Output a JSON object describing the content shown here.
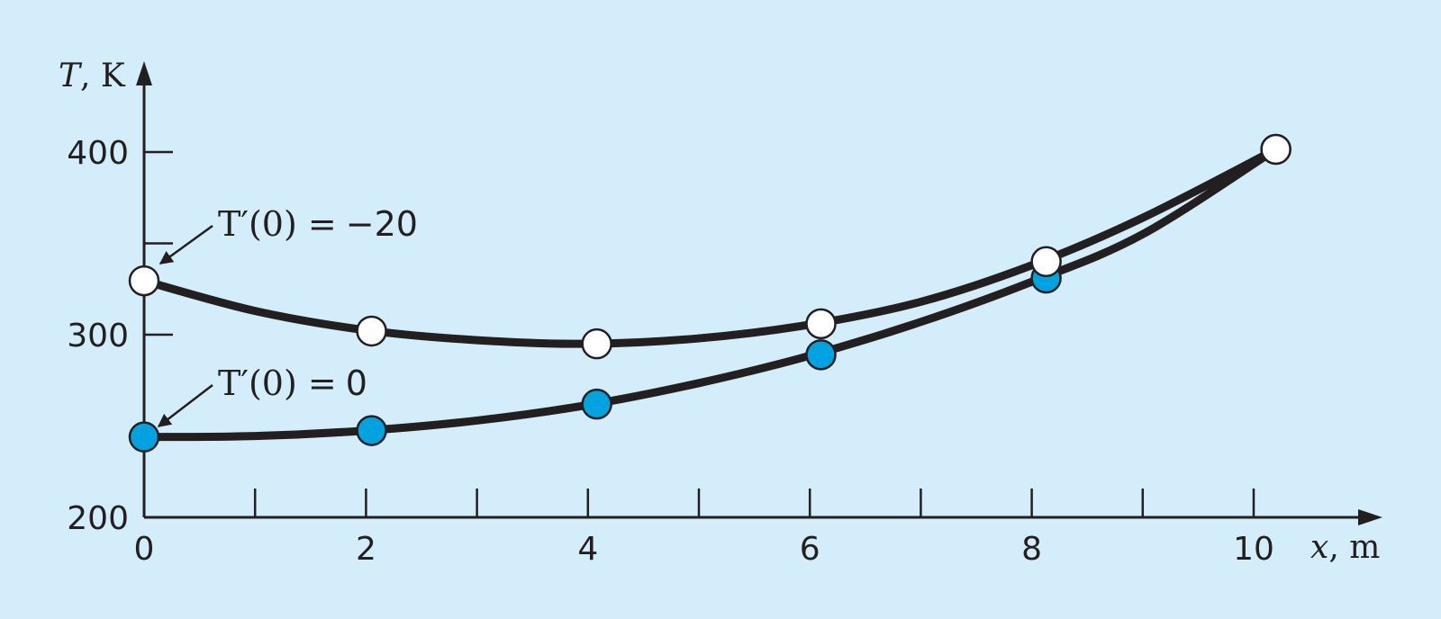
{
  "chart_data": {
    "type": "line",
    "xlim": [
      0,
      10.2
    ],
    "ylim": [
      200,
      400
    ],
    "x_ticks": [
      0,
      2,
      4,
      6,
      8,
      10
    ],
    "x_minor_ticks": [
      1,
      3,
      5,
      7,
      9
    ],
    "y_ticks": [
      200,
      300,
      400
    ],
    "y_minor_ticks": [
      350
    ],
    "xlabel": {
      "var": "x",
      "unit": ", m"
    },
    "ylabel": {
      "var": "T",
      "unit": ", K"
    },
    "grid": false,
    "legend": "none",
    "colors": {
      "background": "#d4edfa",
      "curve": "#231f20",
      "open_marker": "#ffffff",
      "filled_marker": "#00a3e0"
    },
    "series": [
      {
        "marker": "open",
        "x": [
          0,
          2.05,
          4.08,
          6.1,
          8.13,
          10.2
        ],
        "y": [
          329.5,
          302,
          295,
          306,
          340,
          401.5
        ],
        "curve": [
          [
            0,
            329.5
          ],
          [
            1,
            313
          ],
          [
            2,
            302.5
          ],
          [
            3,
            297
          ],
          [
            4,
            295
          ],
          [
            5,
            298
          ],
          [
            6,
            305.5
          ],
          [
            7,
            318
          ],
          [
            8,
            338
          ],
          [
            9,
            364
          ],
          [
            10.2,
            401.5
          ]
        ]
      },
      {
        "marker": "filled",
        "x": [
          0,
          2.05,
          4.08,
          6.1,
          8.13,
          10.2
        ],
        "y": [
          244,
          247.5,
          262,
          289,
          331,
          401.5
        ],
        "curve": [
          [
            0,
            244
          ],
          [
            1,
            244.5
          ],
          [
            2,
            247.5
          ],
          [
            3,
            253
          ],
          [
            4,
            261.5
          ],
          [
            5,
            273.5
          ],
          [
            6,
            288.5
          ],
          [
            7,
            307
          ],
          [
            8,
            329
          ],
          [
            9,
            355
          ],
          [
            10.2,
            401.5
          ]
        ]
      }
    ],
    "annotations": [
      {
        "prefix": "T′(0) =",
        "value": "−20",
        "at": [
          0,
          329.5
        ]
      },
      {
        "prefix": "T′(0) =",
        "value": "0",
        "at": [
          0,
          244
        ]
      }
    ]
  }
}
